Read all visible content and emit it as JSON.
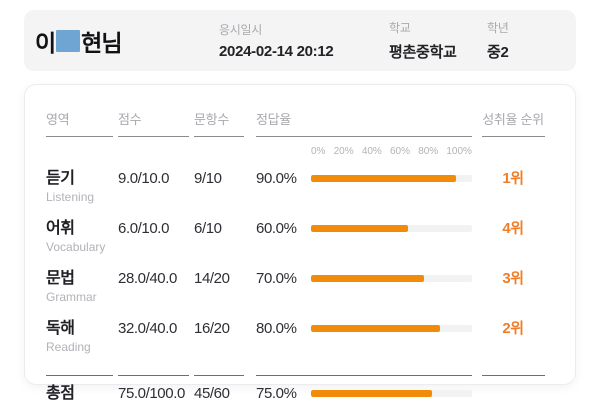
{
  "header": {
    "name_prefix": "이",
    "name_suffix": "현님",
    "fields": [
      {
        "label": "응시일시",
        "value": "2024-02-14 20:12"
      },
      {
        "label": "학교",
        "value": "평촌중학교"
      },
      {
        "label": "학년",
        "value": "중2"
      }
    ]
  },
  "table": {
    "columns": [
      "영역",
      "점수",
      "문항수",
      "정답율",
      "성취율 순위"
    ],
    "axis_ticks": [
      "0%",
      "20%",
      "40%",
      "60%",
      "80%",
      "100%"
    ],
    "rows": [
      {
        "area": "듣기",
        "area_en": "Listening",
        "score": "9.0/10.0",
        "items": "9/10",
        "rate": "90.0%",
        "rate_pct": 90,
        "rank": "1위"
      },
      {
        "area": "어휘",
        "area_en": "Vocabulary",
        "score": "6.0/10.0",
        "items": "6/10",
        "rate": "60.0%",
        "rate_pct": 60,
        "rank": "4위"
      },
      {
        "area": "문법",
        "area_en": "Grammar",
        "score": "28.0/40.0",
        "items": "14/20",
        "rate": "70.0%",
        "rate_pct": 70,
        "rank": "3위"
      },
      {
        "area": "독해",
        "area_en": "Reading",
        "score": "32.0/40.0",
        "items": "16/20",
        "rate": "80.0%",
        "rate_pct": 80,
        "rank": "2위"
      }
    ],
    "total": {
      "area": "총점",
      "score": "75.0/100.0",
      "items": "45/60",
      "rate": "75.0%",
      "rate_pct": 75
    }
  },
  "colors": {
    "accent_orange": "#F08C0A",
    "rank_orange": "#EE7F28",
    "bar_track": "#F2F2F3",
    "redaction_blue": "#6FA5D3",
    "header_bg": "#F4F4F5"
  }
}
